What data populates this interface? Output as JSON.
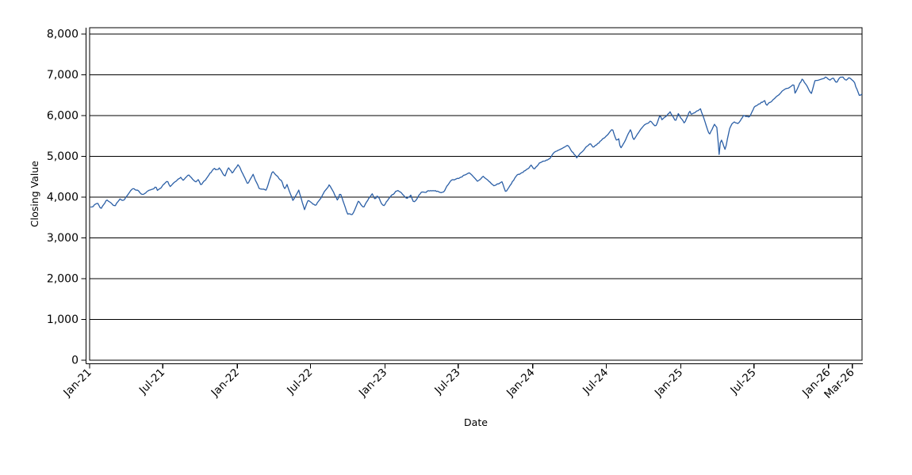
{
  "figure": {
    "background": "#ffffff",
    "frame_color": "#000000",
    "grid_color": "#000000"
  },
  "chart_data": {
    "type": "line",
    "title": "",
    "xlabel": "Date",
    "ylabel": "Closing Value",
    "grid": "horizontal",
    "legend": "none",
    "ylim": [
      0,
      8155
    ],
    "xlim": [
      "2021-01-01",
      "2026-03-25"
    ],
    "y_ticks": [
      {
        "value": 0,
        "label": "0"
      },
      {
        "value": 1000,
        "label": "1,000"
      },
      {
        "value": 2000,
        "label": "2,000"
      },
      {
        "value": 3000,
        "label": "3,000"
      },
      {
        "value": 4000,
        "label": "4,000"
      },
      {
        "value": 5000,
        "label": "5,000"
      },
      {
        "value": 6000,
        "label": "6,000"
      },
      {
        "value": 7000,
        "label": "7,000"
      },
      {
        "value": 8000,
        "label": "8,000"
      }
    ],
    "x_ticks": [
      {
        "date": "2021-01-01",
        "label": "Jan-21"
      },
      {
        "date": "2021-07-01",
        "label": "Jul-21"
      },
      {
        "date": "2022-01-01",
        "label": "Jan-22"
      },
      {
        "date": "2022-07-01",
        "label": "Jul-22"
      },
      {
        "date": "2023-01-01",
        "label": "Jan-23"
      },
      {
        "date": "2023-07-01",
        "label": "Jul-23"
      },
      {
        "date": "2024-01-01",
        "label": "Jan-24"
      },
      {
        "date": "2024-07-01",
        "label": "Jul-24"
      },
      {
        "date": "2025-01-01",
        "label": "Jan-25"
      },
      {
        "date": "2025-07-01",
        "label": "Jul-25"
      },
      {
        "date": "2026-01-01",
        "label": "Jan-26"
      },
      {
        "date": "2026-03-01",
        "label": "Mar-26"
      }
    ],
    "daily_noise_est": 30,
    "series": [
      {
        "name": "Closing Value",
        "color": "#2b5fa6",
        "points": [
          [
            "2021-01-04",
            3757
          ],
          [
            "2021-01-21",
            3853
          ],
          [
            "2021-01-29",
            3714
          ],
          [
            "2021-02-12",
            3935
          ],
          [
            "2021-02-22",
            3876
          ],
          [
            "2021-03-04",
            3768
          ],
          [
            "2021-03-17",
            3974
          ],
          [
            "2021-03-25",
            3910
          ],
          [
            "2021-04-16",
            4185
          ],
          [
            "2021-04-30",
            4181
          ],
          [
            "2021-05-12",
            4063
          ],
          [
            "2021-06-14",
            4255
          ],
          [
            "2021-06-18",
            4166
          ],
          [
            "2021-07-12",
            4385
          ],
          [
            "2021-07-19",
            4258
          ],
          [
            "2021-08-16",
            4480
          ],
          [
            "2021-08-19",
            4406
          ],
          [
            "2021-09-02",
            4537
          ],
          [
            "2021-09-20",
            4358
          ],
          [
            "2021-09-27",
            4443
          ],
          [
            "2021-10-04",
            4300
          ],
          [
            "2021-11-05",
            4698
          ],
          [
            "2021-11-10",
            4647
          ],
          [
            "2021-11-18",
            4705
          ],
          [
            "2021-12-01",
            4513
          ],
          [
            "2021-12-10",
            4712
          ],
          [
            "2021-12-20",
            4568
          ],
          [
            "2022-01-03",
            4797
          ],
          [
            "2022-01-27",
            4326
          ],
          [
            "2022-02-09",
            4587
          ],
          [
            "2022-02-23",
            4225
          ],
          [
            "2022-03-14",
            4173
          ],
          [
            "2022-03-29",
            4631
          ],
          [
            "2022-04-21",
            4393
          ],
          [
            "2022-04-27",
            4184
          ],
          [
            "2022-05-04",
            4300
          ],
          [
            "2022-05-19",
            3901
          ],
          [
            "2022-06-02",
            4177
          ],
          [
            "2022-06-16",
            3667
          ],
          [
            "2022-06-24",
            3912
          ],
          [
            "2022-07-14",
            3790
          ],
          [
            "2022-08-16",
            4305
          ],
          [
            "2022-09-06",
            3908
          ],
          [
            "2022-09-12",
            4110
          ],
          [
            "2022-09-30",
            3586
          ],
          [
            "2022-10-13",
            3577
          ],
          [
            "2022-10-28",
            3901
          ],
          [
            "2022-11-09",
            3748
          ],
          [
            "2022-11-30",
            4080
          ],
          [
            "2022-12-07",
            3934
          ],
          [
            "2022-12-13",
            4020
          ],
          [
            "2022-12-28",
            3783
          ],
          [
            "2023-01-13",
            3999
          ],
          [
            "2023-02-02",
            4180
          ],
          [
            "2023-02-24",
            3970
          ],
          [
            "2023-03-06",
            4048
          ],
          [
            "2023-03-13",
            3856
          ],
          [
            "2023-03-31",
            4109
          ],
          [
            "2023-04-28",
            4169
          ],
          [
            "2023-05-24",
            4115
          ],
          [
            "2023-06-15",
            4426
          ],
          [
            "2023-06-30",
            4450
          ],
          [
            "2023-07-27",
            4607
          ],
          [
            "2023-08-18",
            4370
          ],
          [
            "2023-09-01",
            4516
          ],
          [
            "2023-09-27",
            4274
          ],
          [
            "2023-10-17",
            4373
          ],
          [
            "2023-10-27",
            4117
          ],
          [
            "2023-11-24",
            4559
          ],
          [
            "2023-12-07",
            4586
          ],
          [
            "2023-12-28",
            4783
          ],
          [
            "2024-01-05",
            4697
          ],
          [
            "2024-01-19",
            4840
          ],
          [
            "2024-02-13",
            4953
          ],
          [
            "2024-02-23",
            5089
          ],
          [
            "2024-03-28",
            5254
          ],
          [
            "2024-04-19",
            4967
          ],
          [
            "2024-05-03",
            5128
          ],
          [
            "2024-05-21",
            5321
          ],
          [
            "2024-05-30",
            5235
          ],
          [
            "2024-06-28",
            5460
          ],
          [
            "2024-07-16",
            5667
          ],
          [
            "2024-07-25",
            5399
          ],
          [
            "2024-08-01",
            5446
          ],
          [
            "2024-08-05",
            5186
          ],
          [
            "2024-08-30",
            5648
          ],
          [
            "2024-09-06",
            5408
          ],
          [
            "2024-09-30",
            5762
          ],
          [
            "2024-10-18",
            5865
          ],
          [
            "2024-10-31",
            5705
          ],
          [
            "2024-11-11",
            6001
          ],
          [
            "2024-11-15",
            5871
          ],
          [
            "2024-12-06",
            6090
          ],
          [
            "2024-12-19",
            5867
          ],
          [
            "2024-12-26",
            6038
          ],
          [
            "2025-01-10",
            5827
          ],
          [
            "2025-01-23",
            6119
          ],
          [
            "2025-01-27",
            6012
          ],
          [
            "2025-02-19",
            6144
          ],
          [
            "2025-03-13",
            5521
          ],
          [
            "2025-03-25",
            5777
          ],
          [
            "2025-04-02",
            5671
          ],
          [
            "2025-04-04",
            5074
          ],
          [
            "2025-04-08",
            4983
          ],
          [
            "2025-04-09",
            5457
          ],
          [
            "2025-04-21",
            5158
          ],
          [
            "2025-05-02",
            5687
          ],
          [
            "2025-05-12",
            5844
          ],
          [
            "2025-05-23",
            5803
          ],
          [
            "2025-06-06",
            6000
          ],
          [
            "2025-06-20",
            5968
          ],
          [
            "2025-07-03",
            6230
          ],
          [
            "2025-07-28",
            6370
          ],
          [
            "2025-08-01",
            6238
          ],
          [
            "2025-08-28",
            6501
          ],
          [
            "2025-09-19",
            6664
          ],
          [
            "2025-10-08",
            6754
          ],
          [
            "2025-10-10",
            6553
          ],
          [
            "2025-10-28",
            6891
          ],
          [
            "2025-11-20",
            6539
          ],
          [
            "2025-11-28",
            6849
          ],
          [
            "2025-12-15",
            6880
          ],
          [
            "2025-12-24",
            6940
          ],
          [
            "2026-01-06",
            6860
          ],
          [
            "2026-01-13",
            6945
          ],
          [
            "2026-01-21",
            6790
          ],
          [
            "2026-01-30",
            6930
          ],
          [
            "2026-02-06",
            6950
          ],
          [
            "2026-02-13",
            6870
          ],
          [
            "2026-02-20",
            6945
          ],
          [
            "2026-02-27",
            6900
          ],
          [
            "2026-03-06",
            6800
          ],
          [
            "2026-03-13",
            6620
          ],
          [
            "2026-03-18",
            6480
          ],
          [
            "2026-03-24",
            6520
          ]
        ]
      }
    ]
  }
}
